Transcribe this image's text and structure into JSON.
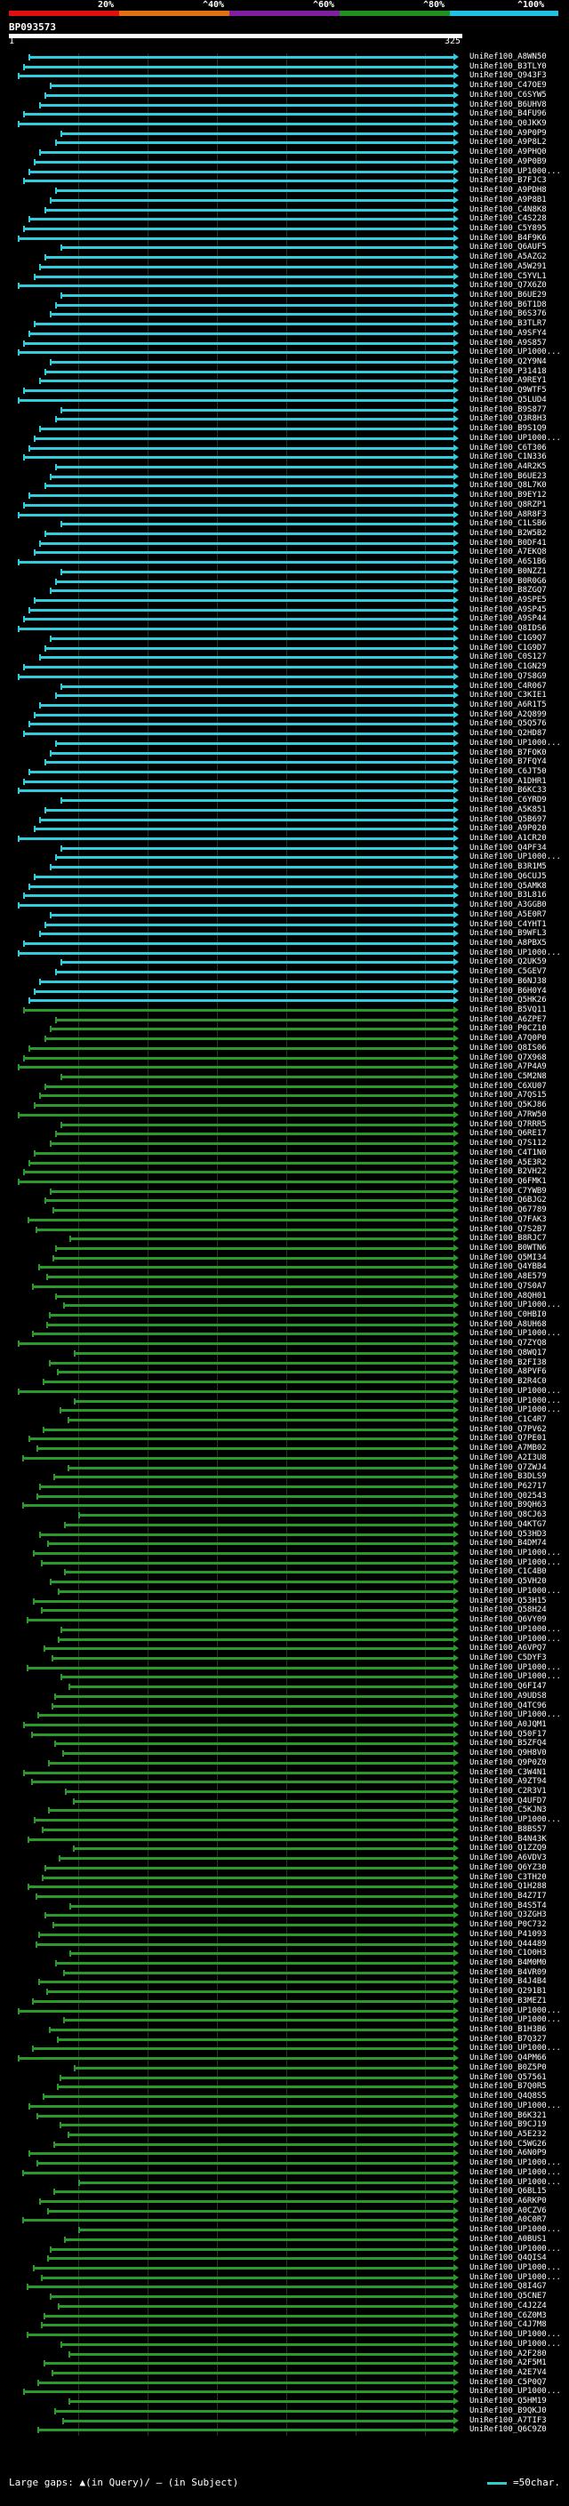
{
  "legend": {
    "ticks": [
      "20%",
      "^40%",
      "^60%",
      "^80%",
      "^100%"
    ],
    "colors": [
      "#e01010",
      "#e07010",
      "#8020a0",
      "#209020",
      "#20c0e0"
    ]
  },
  "query": {
    "id": "BP093573",
    "start": "1",
    "end": "325"
  },
  "palette": {
    "cyan": "#33ccdd",
    "green": "#2a9a2a"
  },
  "hits": [
    "UniRef100_A8WN50",
    "UniRef100_B3TLY0",
    "UniRef100_Q943F3",
    "UniRef100_C47OE9",
    "UniRef100_C6SYW5",
    "UniRef100_B6UHV8",
    "UniRef100_B4FU96",
    "UniRef100_Q0JKK9",
    "UniRef100_A9P0P9",
    "UniRef100_A9P8L2",
    "UniRef100_A9PHQ0",
    "UniRef100_A9P0B9",
    "UniRef100_UP1000...",
    "UniRef100_B7FJC3",
    "UniRef100_A9PDH8",
    "UniRef100_A9P8B1",
    "UniRef100_C4N8K8",
    "UniRef100_C4S228",
    "UniRef100_C5Y895",
    "UniRef100_B4F9K6",
    "UniRef100_Q6AUF5",
    "UniRef100_A5AZG2",
    "UniRef100_A5W291",
    "UniRef100_C5YVL1",
    "UniRef100_Q7X6Z0",
    "UniRef100_B6UE29",
    "UniRef100_B6T1D8",
    "UniRef100_B6S376",
    "UniRef100_B3TLR7",
    "UniRef100_A9SFY4",
    "UniRef100_A9S857",
    "UniRef100_UP1000...",
    "UniRef100_Q2Y9N4",
    "UniRef100_P31418",
    "UniRef100_A9REY1",
    "UniRef100_Q9WTF5",
    "UniRef100_Q5LUD4",
    "UniRef100_B9S877",
    "UniRef100_Q3R8H3",
    "UniRef100_B9S1Q9",
    "UniRef100_UP1000...",
    "UniRef100_C6T306",
    "UniRef100_C1N336",
    "UniRef100_A4R2K5",
    "UniRef100_B6UE23",
    "UniRef100_Q8L7K0",
    "UniRef100_B9EY12",
    "UniRef100_Q8RZP1",
    "UniRef100_A8R8F3",
    "UniRef100_C1LSB6",
    "UniRef100_B2W5B2",
    "UniRef100_B0DF41",
    "UniRef100_A7EKQ8",
    "UniRef100_A6S1B6",
    "UniRef100_B0NZZ1",
    "UniRef100_B0R0G6",
    "UniRef100_B8ZGQ7",
    "UniRef100_A9SPE5",
    "UniRef100_A9SP45",
    "UniRef100_A9SP44",
    "UniRef100_Q8IDS6",
    "UniRef100_C1G9Q7",
    "UniRef100_C1G9D7",
    "UniRef100_C0S127",
    "UniRef100_C1GN29",
    "UniRef100_Q7S8G9",
    "UniRef100_C4R067",
    "UniRef100_C3KIE1",
    "UniRef100_A6R1T5",
    "UniRef100_A2Q899",
    "UniRef100_Q5Q576",
    "UniRef100_Q2HD87",
    "UniRef100_UP1000...",
    "UniRef100_B7FOK0",
    "UniRef100_B7FQY4",
    "UniRef100_C6JT50",
    "UniRef100_A1DHR1",
    "UniRef100_B6KC33",
    "UniRef100_C6YRD9",
    "UniRef100_A5K851",
    "UniRef100_Q5B697",
    "UniRef100_A9P020",
    "UniRef100_A1CR20",
    "UniRef100_Q4PF34",
    "UniRef100_UP1000...",
    "UniRef100_B3R1M5",
    "UniRef100_Q6CUJ5",
    "UniRef100_Q5AMK8",
    "UniRef100_B3L816",
    "UniRef100_A3GGB0",
    "UniRef100_A5E0R7",
    "UniRef100_C4YHT1",
    "UniRef100_B9WFL3",
    "UniRef100_A8PBX5",
    "UniRef100_UP1000...",
    "UniRef100_Q2UK59",
    "UniRef100_C5GEV7",
    "UniRef100_B6NJ38",
    "UniRef100_B6H0Y4",
    "UniRef100_Q5HK26",
    "UniRef100_B5VQ11",
    "UniRef100_A6ZPE7",
    "UniRef100_P0CZ10",
    "UniRef100_A7Q0P0",
    "UniRef100_Q8IS06",
    "UniRef100_Q7X968",
    "UniRef100_A7P4A9",
    "UniRef100_C5M2N8",
    "UniRef100_C6XU07",
    "UniRef100_A7QS15",
    "UniRef100_Q5KJ86",
    "UniRef100_A7RW50",
    "UniRef100_Q7RRR5",
    "UniRef100_Q6RE17",
    "UniRef100_Q7S112",
    "UniRef100_C4T1N0",
    "UniRef100_A5E3R2",
    "UniRef100_B2VH22",
    "UniRef100_Q6FMK1",
    "UniRef100_C7YWB9",
    "UniRef100_Q6BJG2",
    "UniRef100_Q67789",
    "UniRef100_Q7FAK3",
    "UniRef100_Q7S2B7",
    "UniRef100_B8RJC7",
    "UniRef100_B0WTN6",
    "UniRef100_Q5MI34",
    "UniRef100_Q4YBB4",
    "UniRef100_A8E579",
    "UniRef100_Q7S0A7",
    "UniRef100_A8QH01",
    "UniRef100_UP1000...",
    "UniRef100_C0HBI0",
    "UniRef100_A8UH68",
    "UniRef100_UP1000...",
    "UniRef100_Q7ZYQ8",
    "UniRef100_Q8WQ17",
    "UniRef100_B2FI38",
    "UniRef100_A8PVF6",
    "UniRef100_B2R4C0",
    "UniRef100_UP1000...",
    "UniRef100_UP1000...",
    "UniRef100_UP1000...",
    "UniRef100_C1C4R7",
    "UniRef100_Q7PV62",
    "UniRef100_Q7PE01",
    "UniRef100_A7MB02",
    "UniRef100_A2I3U8",
    "UniRef100_Q7ZWJ4",
    "UniRef100_B3DLS9",
    "UniRef100_P62717",
    "UniRef100_Q02543",
    "UniRef100_B9QH63",
    "UniRef100_Q8CJ63",
    "UniRef100_Q4KTG7",
    "UniRef100_Q53HD3",
    "UniRef100_B4DM74",
    "UniRef100_UP1000...",
    "UniRef100_UP1000...",
    "UniRef100_C1C4B0",
    "UniRef100_Q5VH20",
    "UniRef100_UP1000...",
    "UniRef100_Q53H15",
    "UniRef100_Q58H24",
    "UniRef100_Q6VY09",
    "UniRef100_UP1000...",
    "UniRef100_UP1000...",
    "UniRef100_A6VPQ7",
    "UniRef100_C5DYF3",
    "UniRef100_UP1000...",
    "UniRef100_UP1000...",
    "UniRef100_Q6FI47",
    "UniRef100_A9UDS8",
    "UniRef100_Q4TC96",
    "UniRef100_UP1000...",
    "UniRef100_A0JQM1",
    "UniRef100_Q50F17",
    "UniRef100_B5ZFQ4",
    "UniRef100_Q9H8V0",
    "UniRef100_Q9P0Z0",
    "UniRef100_C3W4N1",
    "UniRef100_A9ZT94",
    "UniRef100_C2R3V1",
    "UniRef100_Q4UFD7",
    "UniRef100_C5KJN3",
    "UniRef100_UP1000...",
    "UniRef100_B8BS57",
    "UniRef100_B4N43K",
    "UniRef100_Q1ZZQ9",
    "UniRef100_A6VDV3",
    "UniRef100_Q6YZ30",
    "UniRef100_C3TH20",
    "UniRef100_Q1H288",
    "UniRef100_B4Z7I7",
    "UniRef100_B4S5T4",
    "UniRef100_Q3ZGH3",
    "UniRef100_P0C732",
    "UniRef100_P41093",
    "UniRef100_Q44489",
    "UniRef100_C1O0H3",
    "UniRef100_B4M0M0",
    "UniRef100_B4VR09",
    "UniRef100_B4J4B4",
    "UniRef100_Q291B1",
    "UniRef100_B3MEZ1",
    "UniRef100_UP1000...",
    "UniRef100_UP1000...",
    "UniRef100_B1H3B6",
    "UniRef100_B7Q327",
    "UniRef100_UP1000...",
    "UniRef100_Q4PM66",
    "UniRef100_B0Z5P0",
    "UniRef100_Q57561",
    "UniRef100_B7Q0R5",
    "UniRef100_Q4Q8S5",
    "UniRef100_UP1000...",
    "UniRef100_B6K321",
    "UniRef100_B9CJ19",
    "UniRef100_A5E232",
    "UniRef100_C5WG26",
    "UniRef100_A6N0P9",
    "UniRef100_UP1000...",
    "UniRef100_UP1000...",
    "UniRef100_UP1000...",
    "UniRef100_Q6BL15",
    "UniRef100_A6RKP0",
    "UniRef100_A0CZV6",
    "UniRef100_A0C0R7",
    "UniRef100_UP1000...",
    "UniRef100_A0BUS1",
    "UniRef100_UP1000...",
    "UniRef100_Q4QIS4",
    "UniRef100_UP1000...",
    "UniRef100_UP1000...",
    "UniRef100_Q8I4G7",
    "UniRef100_Q5CNE7",
    "UniRef100_C4J2Z4",
    "UniRef100_C6Z0M3",
    "UniRef100_C4J7M8",
    "UniRef100_UP1000...",
    "UniRef100_UP1000...",
    "UniRef100_A2F280",
    "UniRef100_A2F5M1",
    "UniRef100_A2E7V4",
    "UniRef100_C5P0Q7",
    "UniRef100_UP1000...",
    "UniRef100_Q5HM19",
    "UniRef100_B9QKJ0",
    "UniRef100_A7TIF3",
    "UniRef100_Q6C9Z0"
  ],
  "footer": {
    "gaps_label": "Large gaps: ▲(in Query)/ — (in Subject)",
    "scale_label": "=50char."
  }
}
